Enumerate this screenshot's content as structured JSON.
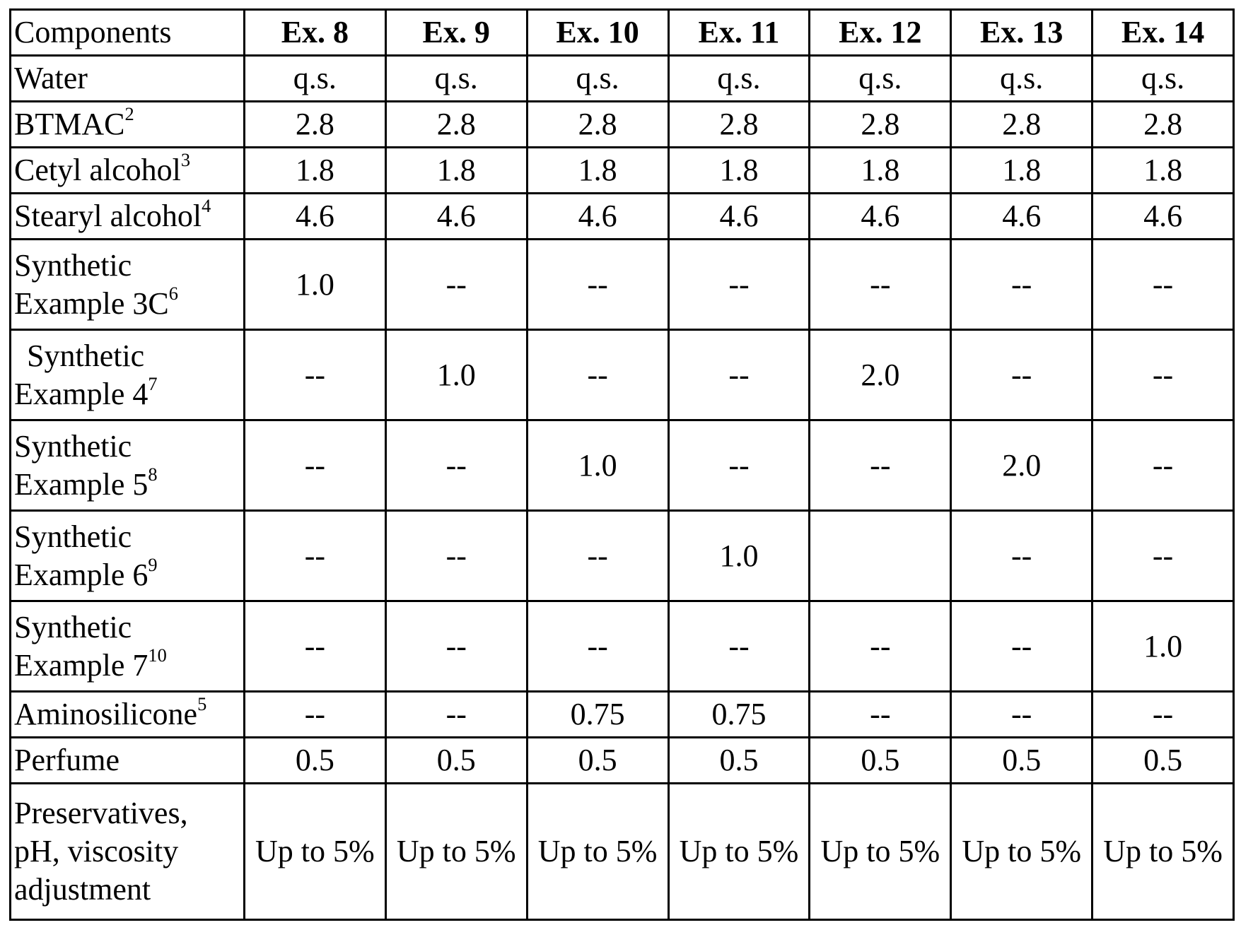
{
  "table": {
    "header": [
      "Components",
      "Ex. 8",
      "Ex. 9",
      "Ex. 10",
      "Ex. 11",
      "Ex. 12",
      "Ex. 13",
      "Ex. 14"
    ],
    "rows": [
      {
        "label": "Water",
        "sup": "",
        "values": [
          "q.s.",
          "q.s.",
          "q.s.",
          "q.s.",
          "q.s.",
          "q.s.",
          "q.s."
        ]
      },
      {
        "label": "BTMAC",
        "sup": "2",
        "values": [
          "2.8",
          "2.8",
          "2.8",
          "2.8",
          "2.8",
          "2.8",
          "2.8"
        ]
      },
      {
        "label": "Cetyl alcohol",
        "sup": "3",
        "values": [
          "1.8",
          "1.8",
          "1.8",
          "1.8",
          "1.8",
          "1.8",
          "1.8"
        ]
      },
      {
        "label": "Stearyl alcohol",
        "sup": "4",
        "values": [
          "4.6",
          "4.6",
          "4.6",
          "4.6",
          "4.6",
          "4.6",
          "4.6"
        ]
      },
      {
        "label_line1": "Synthetic",
        "label_line2": "Example 3C",
        "sup": "6",
        "values": [
          "1.0",
          "--",
          "--",
          "--",
          "--",
          "--",
          "--"
        ]
      },
      {
        "label_line1": "Synthetic",
        "label_line2": "Example 4",
        "sup": "7",
        "values": [
          "--",
          "1.0",
          "--",
          "--",
          "2.0",
          "--",
          "--"
        ]
      },
      {
        "label_line1": "Synthetic",
        "label_line2": "Example 5",
        "sup": "8",
        "values": [
          "--",
          "--",
          "1.0",
          "--",
          "--",
          "2.0",
          "--"
        ]
      },
      {
        "label_line1": "Synthetic",
        "label_line2": "Example 6",
        "sup": "9",
        "values": [
          "--",
          "--",
          "--",
          "1.0",
          "",
          "--",
          "--"
        ]
      },
      {
        "label_line1": "Synthetic",
        "label_line2": "Example 7",
        "sup": "10",
        "values": [
          "--",
          "--",
          "--",
          "--",
          "--",
          "--",
          "1.0"
        ]
      },
      {
        "label": "Aminosilicone",
        "sup": "5",
        "values": [
          "--",
          "--",
          "0.75",
          "0.75",
          "--",
          "--",
          "--"
        ]
      },
      {
        "label": "Perfume",
        "sup": "",
        "values": [
          "0.5",
          "0.5",
          "0.5",
          "0.5",
          "0.5",
          "0.5",
          "0.5"
        ]
      },
      {
        "label_line1": "Preservatives,",
        "label_line2": "pH, viscosity",
        "label_line3": "adjustment",
        "values": [
          "Up to 5%",
          "Up to 5%",
          "Up to 5%",
          "Up to 5%",
          "Up to 5%",
          "Up to 5%",
          "Up to 5%"
        ]
      }
    ]
  }
}
